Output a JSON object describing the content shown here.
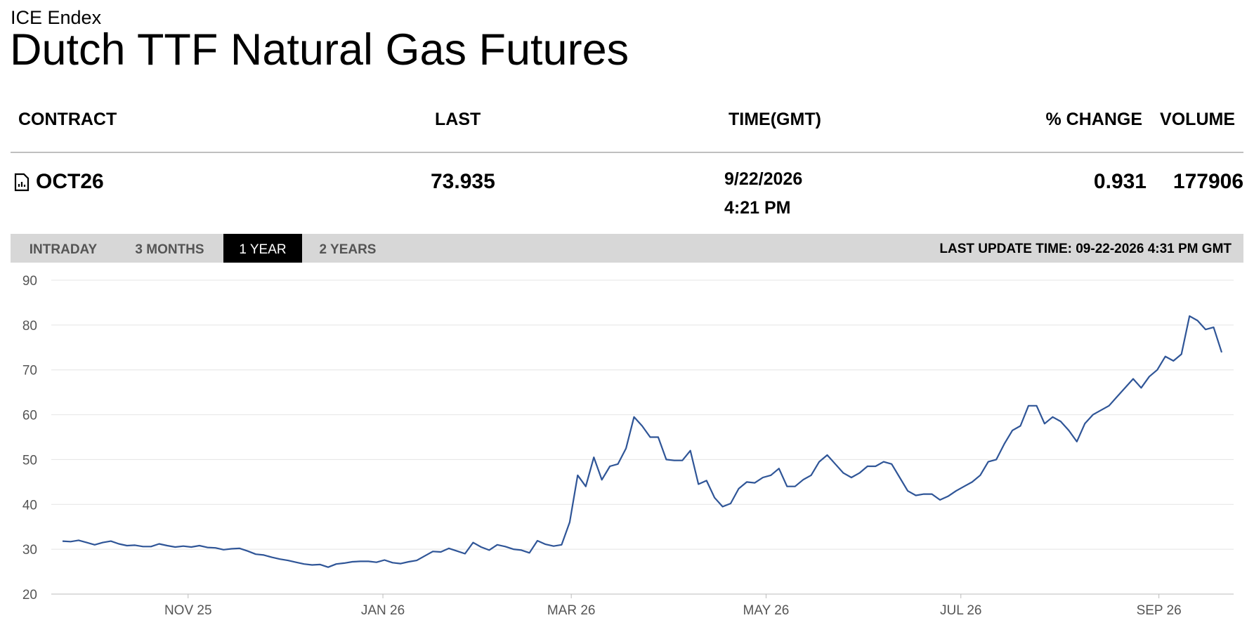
{
  "header": {
    "exchange": "ICE Endex",
    "title": "Dutch TTF Natural Gas Futures"
  },
  "table": {
    "columns": [
      "CONTRACT",
      "LAST",
      "TIME(GMT)",
      "% CHANGE",
      "VOLUME"
    ],
    "row": {
      "contract": "OCT26",
      "last": "73.935",
      "date": "9/22/2026",
      "time": "4:21 PM",
      "change": "0.931",
      "volume": "177906"
    }
  },
  "tabs": [
    "INTRADAY",
    "3 MONTHS",
    "1 YEAR",
    "2 YEARS"
  ],
  "active_tab": 2,
  "last_update": "LAST UPDATE TIME: 09-22-2026 4:31 PM GMT",
  "chart_data": {
    "type": "line",
    "color": "#2f5597",
    "grid": true,
    "values": [
      31.8,
      31.7,
      32.0,
      31.5,
      31.0,
      31.5,
      31.8,
      31.2,
      30.8,
      30.9,
      30.6,
      30.6,
      31.2,
      30.8,
      30.5,
      30.7,
      30.5,
      30.8,
      30.4,
      30.3,
      29.9,
      30.1,
      30.2,
      29.6,
      28.9,
      28.7,
      28.2,
      27.8,
      27.5,
      27.1,
      26.7,
      26.5,
      26.6,
      26.0,
      26.7,
      26.9,
      27.2,
      27.3,
      27.3,
      27.1,
      27.6,
      27.0,
      26.8,
      27.2,
      27.5,
      28.5,
      29.5,
      29.4,
      30.2,
      29.6,
      29.0,
      31.5,
      30.5,
      29.8,
      31.0,
      30.6,
      30.0,
      29.8,
      29.2,
      31.9,
      31.1,
      30.7,
      31.0,
      36.0,
      46.5,
      44.0,
      50.5,
      45.5,
      48.5,
      49.0,
      52.5,
      59.5,
      57.5,
      55.0,
      55.0,
      50.0,
      49.8,
      49.8,
      52.0,
      44.5,
      45.3,
      41.5,
      39.5,
      40.2,
      43.5,
      45.0,
      44.8,
      46.0,
      46.5,
      48.0,
      44.0,
      44.0,
      45.5,
      46.5,
      49.5,
      51.0,
      49.0,
      47.0,
      46.0,
      47.0,
      48.5,
      48.5,
      49.5,
      49.0,
      46.0,
      43.0,
      42.0,
      42.3,
      42.3,
      41.0,
      41.8,
      43.0,
      44.0,
      45.0,
      46.5,
      49.5,
      50.0,
      53.5,
      56.5,
      57.5,
      62.0,
      62.0,
      58.0,
      59.5,
      58.5,
      56.5,
      54.0,
      58.0,
      60.0,
      61.0,
      62.0,
      64.0,
      66.0,
      68.0,
      66.0,
      68.5,
      70.0,
      73.0,
      72.0,
      73.5,
      82.0,
      81.0,
      79.0,
      79.5,
      73.9
    ],
    "xlim": [
      0,
      144
    ],
    "xticks": [
      {
        "value": 15.6,
        "label": "NOV 25"
      },
      {
        "value": 39.8,
        "label": "JAN 26"
      },
      {
        "value": 63.2,
        "label": "MAR 26"
      },
      {
        "value": 87.4,
        "label": "MAY 26"
      },
      {
        "value": 111.6,
        "label": "JUL 26"
      },
      {
        "value": 136.2,
        "label": "SEP 26"
      }
    ],
    "ylim": [
      20,
      90
    ],
    "yticks": [
      20,
      30,
      40,
      50,
      60,
      70,
      80,
      90
    ]
  }
}
